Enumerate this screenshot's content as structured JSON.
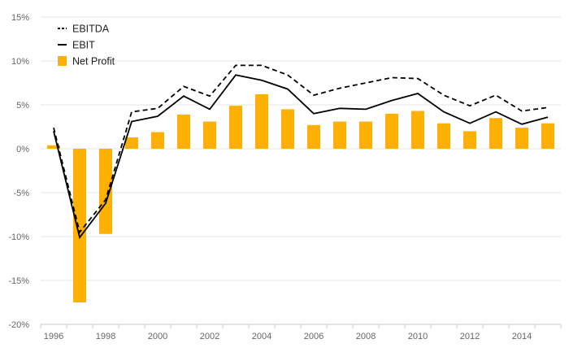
{
  "chart_data": {
    "type": "bar",
    "title": "",
    "xlabel": "",
    "ylabel": "",
    "categories": [
      "1996",
      "1997",
      "1998",
      "1999",
      "2000",
      "2001",
      "2002",
      "2003",
      "2004",
      "2005",
      "2006",
      "2007",
      "2008",
      "2009",
      "2010",
      "2011",
      "2012",
      "2013",
      "2014",
      "2015"
    ],
    "x_tick_labels": [
      "1996",
      "1998",
      "2000",
      "2002",
      "2004",
      "2006",
      "2008",
      "2010",
      "2012",
      "2014"
    ],
    "y_ticks": [
      15,
      10,
      5,
      0,
      -5,
      -10,
      -15,
      -20
    ],
    "y_tick_labels": [
      "15%",
      "10%",
      "5%",
      "0%",
      "-5%",
      "-10%",
      "-15%",
      "-20%"
    ],
    "ylim": [
      -20,
      15
    ],
    "grid": true,
    "legend_position": "top-left",
    "series": [
      {
        "name": "EBITDA",
        "kind": "line",
        "style": "dashed",
        "color": "#000000",
        "values": [
          2.4,
          -9.5,
          -5.8,
          4.2,
          4.6,
          7.1,
          6.0,
          9.5,
          9.5,
          8.4,
          6.1,
          6.9,
          7.5,
          8.1,
          8.0,
          6.1,
          4.9,
          6.1,
          4.3,
          4.7
        ]
      },
      {
        "name": "EBIT",
        "kind": "line",
        "style": "solid",
        "color": "#000000",
        "values": [
          2.0,
          -10.1,
          -6.2,
          3.1,
          3.7,
          6.0,
          4.5,
          8.4,
          7.8,
          6.8,
          4.0,
          4.6,
          4.5,
          5.5,
          6.3,
          4.2,
          2.9,
          4.2,
          2.8,
          3.6
        ]
      },
      {
        "name": "Net Profit",
        "kind": "bar",
        "color": "#FFB000",
        "values": [
          0.4,
          -17.5,
          -9.7,
          1.3,
          1.9,
          3.9,
          3.1,
          4.9,
          6.2,
          4.5,
          2.7,
          3.1,
          3.1,
          4.0,
          4.3,
          2.9,
          2.0,
          3.5,
          2.4,
          2.9
        ]
      }
    ]
  }
}
